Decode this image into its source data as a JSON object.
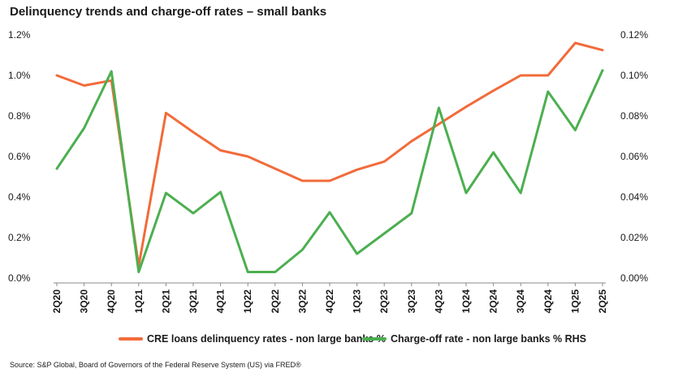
{
  "chart_data": {
    "type": "line",
    "title": "Delinquency trends and charge-off rates – small banks",
    "source": "Source: S&P Global, Board of Governors of the Federal Reserve System (US) via FRED®",
    "categories": [
      "2Q20",
      "3Q20",
      "4Q20",
      "1Q21",
      "2Q21",
      "3Q21",
      "4Q21",
      "1Q22",
      "2Q22",
      "3Q22",
      "4Q22",
      "1Q23",
      "2Q23",
      "3Q23",
      "4Q23",
      "1Q24",
      "2Q24",
      "3Q24",
      "4Q24",
      "1Q25",
      "2Q25"
    ],
    "left_axis": {
      "ylim": [
        0,
        1.2
      ],
      "ticks": [
        "0.0%",
        "0.2%",
        "0.4%",
        "0.6%",
        "0.8%",
        "1.0%",
        "1.2%"
      ]
    },
    "right_axis": {
      "ylim": [
        0,
        0.12
      ],
      "ticks": [
        "0.00%",
        "0.02%",
        "0.04%",
        "0.06%",
        "0.08%",
        "0.10%",
        "0.12%"
      ]
    },
    "series": [
      {
        "name": "CRE loans delinquency rates - non large banks %",
        "axis": "left",
        "color": "#f26b3a",
        "values": [
          1.0,
          0.95,
          0.975,
          0.06,
          0.815,
          0.72,
          0.63,
          0.6,
          0.54,
          0.48,
          0.48,
          0.535,
          0.575,
          0.675,
          0.76,
          0.845,
          0.925,
          1.0,
          1.0,
          1.16,
          1.125
        ]
      },
      {
        "name": "Charge-off rate - non large banks % RHS",
        "axis": "right",
        "color": "#4caf50",
        "values": [
          0.054,
          0.074,
          0.102,
          0.003,
          0.042,
          0.032,
          0.0425,
          0.003,
          0.003,
          0.014,
          0.0325,
          0.012,
          0.022,
          0.032,
          0.084,
          0.042,
          0.062,
          0.042,
          0.092,
          0.073,
          0.1025
        ]
      }
    ],
    "grid": false,
    "legend": "bottom"
  }
}
